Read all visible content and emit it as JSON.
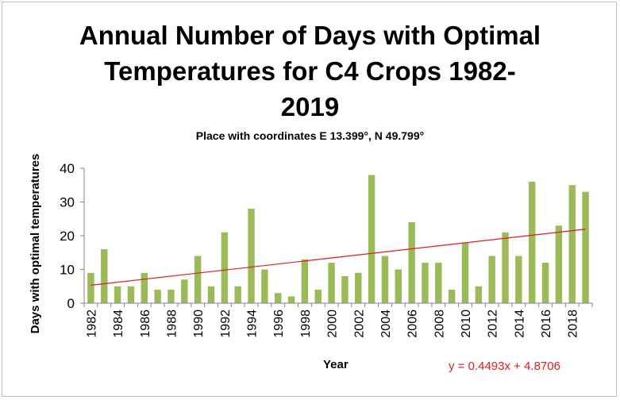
{
  "chart_data": {
    "type": "bar",
    "title_lines": [
      "Annual Number of Days with Optimal",
      "Temperatures  for C4 Crops 1982-",
      "2019"
    ],
    "subtitle": "Place with coordinates E 13.399°, N 49.799°",
    "xlabel": "Year",
    "ylabel": "Days with optimal temperatures",
    "ylim": [
      0,
      40
    ],
    "yticks": [
      0,
      10,
      20,
      30,
      40
    ],
    "categories": [
      1982,
      1983,
      1984,
      1985,
      1986,
      1987,
      1988,
      1989,
      1990,
      1991,
      1992,
      1993,
      1994,
      1995,
      1996,
      1997,
      1998,
      1999,
      2000,
      2001,
      2002,
      2003,
      2004,
      2005,
      2006,
      2007,
      2008,
      2009,
      2010,
      2011,
      2012,
      2013,
      2014,
      2015,
      2016,
      2017,
      2018,
      2019
    ],
    "xtick_labels": [
      "1982",
      "1984",
      "1986",
      "1988",
      "1990",
      "1992",
      "1994",
      "1996",
      "1998",
      "2000",
      "2002",
      "2004",
      "2006",
      "2008",
      "2010",
      "2012",
      "2014",
      "2016",
      "2018"
    ],
    "values": [
      9,
      16,
      5,
      5,
      9,
      4,
      4,
      7,
      14,
      5,
      21,
      5,
      28,
      10,
      3,
      2,
      13,
      4,
      12,
      8,
      9,
      38,
      14,
      10,
      24,
      12,
      12,
      4,
      18,
      5,
      14,
      21,
      14,
      36,
      12,
      23,
      35,
      33
    ],
    "bar_color": "#9bbb59",
    "trendline": {
      "slope": 0.4493,
      "intercept": 4.8706,
      "color": "#e31a1c",
      "equation": "y = 0.4493x + 4.8706"
    },
    "grid": false,
    "legend": "none"
  }
}
